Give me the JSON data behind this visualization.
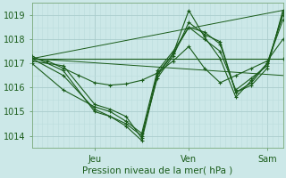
{
  "xlabel": "Pression niveau de la mer( hPa )",
  "bg_color": "#cce8e8",
  "line_color": "#1a5c1a",
  "grid_color": "#b8d8d8",
  "grid_color2": "#ffffff",
  "ylim": [
    1013.5,
    1019.5
  ],
  "xlim": [
    0,
    96
  ],
  "xtick_positions": [
    24,
    60,
    90
  ],
  "xtick_labels": [
    "Jeu",
    "Ven",
    "Sam"
  ],
  "yticks": [
    1014,
    1015,
    1016,
    1017,
    1018,
    1019
  ],
  "series": [
    [
      0,
      1017.2,
      6,
      1017.1,
      12,
      1016.8,
      18,
      1016.5,
      24,
      1016.2,
      30,
      1016.1,
      36,
      1016.15,
      42,
      1016.3,
      48,
      1016.6,
      54,
      1017.1,
      60,
      1017.7,
      66,
      1016.8,
      72,
      1016.2,
      78,
      1016.5,
      84,
      1016.8,
      90,
      1017.1,
      96,
      1018.0
    ],
    [
      0,
      1017.2,
      96,
      1017.2
    ],
    [
      0,
      1017.3,
      12,
      1016.7,
      24,
      1015.0,
      30,
      1014.8,
      36,
      1014.4,
      42,
      1013.8,
      48,
      1016.5,
      54,
      1017.4,
      60,
      1018.5,
      66,
      1018.3,
      72,
      1017.8,
      78,
      1015.8,
      84,
      1016.1,
      90,
      1016.8,
      96,
      1019.2
    ],
    [
      0,
      1017.1,
      12,
      1016.9,
      24,
      1015.3,
      30,
      1015.1,
      36,
      1014.8,
      42,
      1013.9,
      48,
      1016.6,
      54,
      1017.4,
      60,
      1019.2,
      66,
      1018.1,
      72,
      1017.2,
      78,
      1015.6,
      84,
      1016.3,
      90,
      1017.0,
      96,
      1019.0
    ],
    [
      0,
      1017.0,
      12,
      1015.9,
      24,
      1015.2,
      30,
      1015.0,
      36,
      1014.6,
      42,
      1014.1,
      48,
      1016.7,
      54,
      1017.5,
      60,
      1018.5,
      66,
      1018.0,
      72,
      1017.5,
      78,
      1015.9,
      84,
      1016.4,
      90,
      1016.9,
      96,
      1019.1
    ],
    [
      0,
      1017.2,
      12,
      1016.5,
      24,
      1015.1,
      30,
      1014.8,
      36,
      1014.5,
      42,
      1014.0,
      48,
      1016.4,
      54,
      1017.3,
      60,
      1018.7,
      66,
      1018.2,
      72,
      1017.9,
      78,
      1015.8,
      84,
      1016.2,
      90,
      1017.0,
      96,
      1018.8
    ]
  ],
  "straight_lines": [
    [
      [
        0,
        1017.2
      ],
      [
        96,
        1019.2
      ]
    ],
    [
      [
        0,
        1017.2
      ],
      [
        96,
        1016.5
      ]
    ]
  ],
  "marker": "+",
  "markersize": 3,
  "linewidth": 0.8,
  "straight_lw": 0.7
}
